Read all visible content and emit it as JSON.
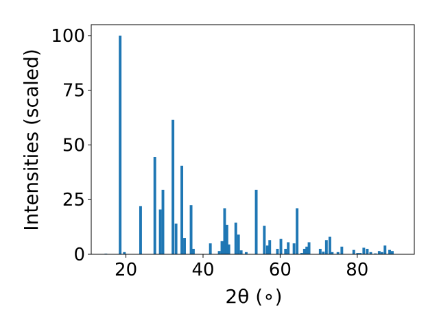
{
  "chart_data": {
    "type": "bar",
    "title": "",
    "xlabel": "2θ (∘)",
    "ylabel": "Intensities (scaled)",
    "xlim": [
      11.0,
      94.8
    ],
    "ylim": [
      0,
      105
    ],
    "xticks": [
      20,
      40,
      60,
      80
    ],
    "yticks": [
      0,
      25,
      50,
      75,
      100
    ],
    "grid": false,
    "bar_width": 0.7,
    "color": "#1f77b4",
    "x": [
      14.8,
      18.5,
      19.6,
      23.8,
      27.5,
      28.9,
      29.6,
      32.2,
      33.0,
      34.5,
      35.2,
      36.9,
      37.5,
      41.9,
      44.2,
      44.9,
      45.6,
      46.2,
      46.7,
      48.5,
      49.2,
      49.9,
      51.2,
      53.8,
      55.9,
      56.7,
      57.3,
      59.3,
      60.2,
      61.4,
      62.1,
      63.6,
      64.4,
      65.6,
      66.3,
      66.9,
      67.5,
      70.4,
      71.2,
      72.0,
      72.9,
      73.5,
      75.0,
      76.0,
      79.1,
      80.1,
      80.8,
      81.7,
      82.6,
      83.5,
      84.7,
      85.7,
      86.4,
      87.2,
      88.4,
      89.1
    ],
    "values": [
      0.3,
      100,
      1,
      22,
      44.5,
      20.5,
      29.5,
      61.5,
      14,
      40.5,
      7.5,
      22.5,
      2.5,
      5,
      1.5,
      6,
      21,
      13.5,
      4.5,
      14.5,
      9,
      1.8,
      1,
      29.5,
      13,
      4,
      6.5,
      2.5,
      7,
      2.5,
      5.5,
      5,
      21,
      0.6,
      2.5,
      3.5,
      5.5,
      2.5,
      1.2,
      6.5,
      8,
      1,
      1,
      3.5,
      2,
      0.6,
      0.6,
      3,
      2.5,
      1,
      0.4,
      1.5,
      1,
      4,
      2,
      1.5
    ]
  }
}
